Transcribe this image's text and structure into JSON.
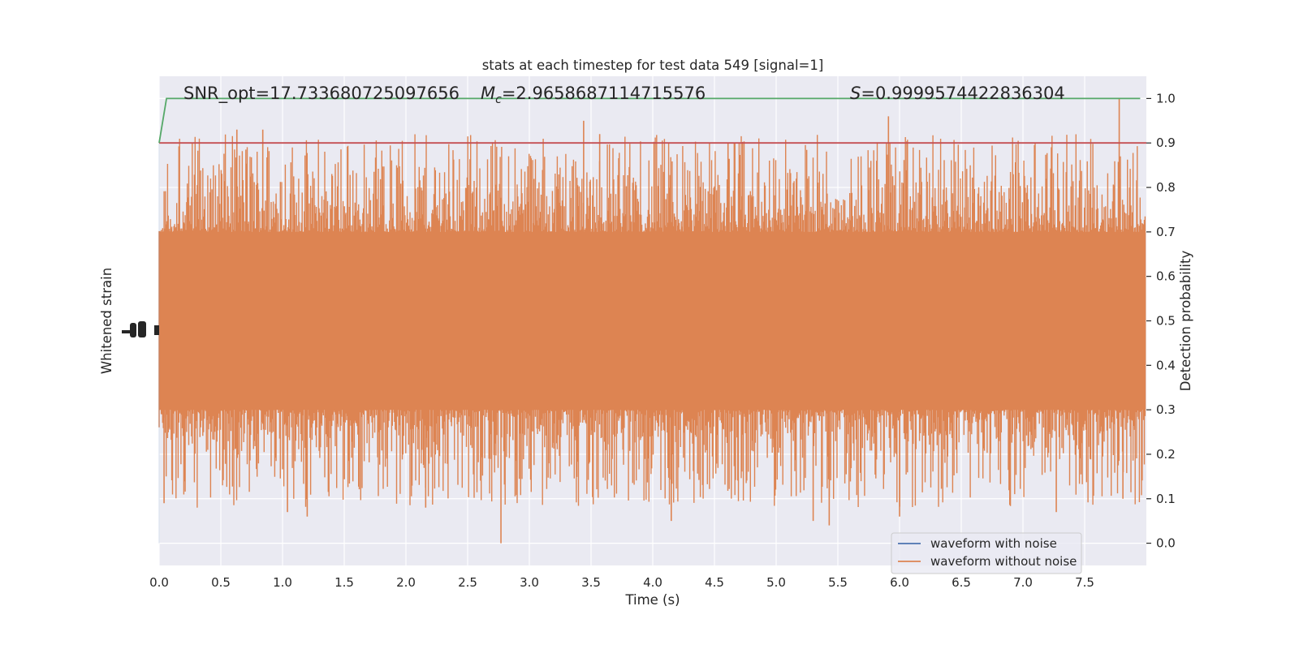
{
  "chart_data": {
    "type": "line",
    "title": "stats at each timestep for test data 549 [signal=1]",
    "xlabel": "Time (s)",
    "ylabel_left": "Whitened strain",
    "ylabel_right": "Detection probability",
    "xlim": [
      0.0,
      8.0
    ],
    "ylim_right": [
      -0.05,
      1.05
    ],
    "xticks": [
      "0.0",
      "0.5",
      "1.0",
      "1.5",
      "2.0",
      "2.5",
      "3.0",
      "3.5",
      "4.0",
      "4.5",
      "5.0",
      "5.5",
      "6.0",
      "6.5",
      "7.0",
      "7.5"
    ],
    "xtick_values": [
      0.0,
      0.5,
      1.0,
      1.5,
      2.0,
      2.5,
      3.0,
      3.5,
      4.0,
      4.5,
      5.0,
      5.5,
      6.0,
      6.5,
      7.0,
      7.5
    ],
    "yticks_right": [
      "0.0",
      "0.1",
      "0.2",
      "0.3",
      "0.4",
      "0.5",
      "0.6",
      "0.7",
      "0.8",
      "0.9",
      "1.0"
    ],
    "ytick_values_right": [
      0.0,
      0.1,
      0.2,
      0.3,
      0.4,
      0.5,
      0.6,
      0.7,
      0.8,
      0.9,
      1.0
    ],
    "grid": true,
    "legend_position": "lower-right",
    "annotations": {
      "snr": "SNR_opt=17.733680725097656",
      "mc_symbol": "M",
      "mc_sub": "c",
      "mc_value": "=2.9658687114715576",
      "s_symbol": "S",
      "s_value": "=0.9999574422836304"
    },
    "series": [
      {
        "name": "waveform with noise",
        "color": "#4c72b0",
        "style": "dense-noise"
      },
      {
        "name": "waveform without noise",
        "color": "#dd8452",
        "style": "dense-noise",
        "central_band": [
          0.3,
          0.7
        ],
        "spikes": [
          {
            "x": 0.04,
            "y": 0.09
          },
          {
            "x": 0.63,
            "y": 0.93
          },
          {
            "x": 0.84,
            "y": 0.93
          },
          {
            "x": 1.04,
            "y": 0.07
          },
          {
            "x": 1.2,
            "y": 0.06
          },
          {
            "x": 2.16,
            "y": 0.08
          },
          {
            "x": 2.77,
            "y": 0.0
          },
          {
            "x": 3.44,
            "y": 0.95
          },
          {
            "x": 3.57,
            "y": 0.92
          },
          {
            "x": 4.15,
            "y": 0.05
          },
          {
            "x": 4.61,
            "y": 0.9
          },
          {
            "x": 5.3,
            "y": 0.05
          },
          {
            "x": 5.43,
            "y": 0.04
          },
          {
            "x": 5.91,
            "y": 0.96
          },
          {
            "x": 6.0,
            "y": 0.06
          },
          {
            "x": 7.27,
            "y": 0.07
          },
          {
            "x": 7.78,
            "y": 1.0
          },
          {
            "x": 7.81,
            "y": 0.1
          }
        ]
      },
      {
        "name": "",
        "color": "#55a868",
        "x": [
          0.0,
          0.06,
          7.95
        ],
        "values": [
          0.9,
          1.0,
          1.0
        ]
      },
      {
        "name": "",
        "color": "#c44e52",
        "x": [
          0.0,
          8.0
        ],
        "values": [
          0.9,
          0.9
        ]
      }
    ]
  }
}
